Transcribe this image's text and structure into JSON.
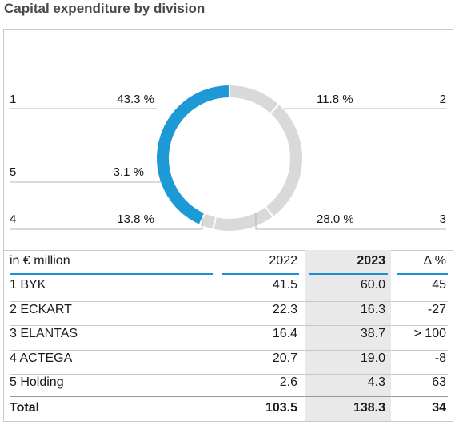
{
  "title": "Capital expenditure by division",
  "colors": {
    "highlight": "#1d9ad6",
    "muted": "#d9d9d9",
    "rule": "#1d8fd6"
  },
  "chart_data": {
    "type": "pie",
    "variant": "donut",
    "slices": [
      {
        "label": "1",
        "percent_text": "43.3 %",
        "value": 43.3,
        "highlighted": true
      },
      {
        "label": "2",
        "percent_text": "11.8 %",
        "value": 11.8,
        "highlighted": false
      },
      {
        "label": "3",
        "percent_text": "28.0 %",
        "value": 28.0,
        "highlighted": false
      },
      {
        "label": "4",
        "percent_text": "13.8 %",
        "value": 13.8,
        "highlighted": false
      },
      {
        "label": "5",
        "percent_text": "3.1 %",
        "value": 3.1,
        "highlighted": false
      }
    ]
  },
  "table": {
    "headers": [
      "in € million",
      "2022",
      "2023",
      "Δ %"
    ],
    "rows": [
      [
        "1 BYK",
        "41.5",
        "60.0",
        "45"
      ],
      [
        "2 ECKART",
        "22.3",
        "16.3",
        "-27"
      ],
      [
        "3 ELANTAS",
        "16.4",
        "38.7",
        "> 100"
      ],
      [
        "4 ACTEGA",
        "20.7",
        "19.0",
        "-8"
      ],
      [
        "5 Holding",
        "2.6",
        "4.3",
        "63"
      ]
    ],
    "total": [
      "Total",
      "103.5",
      "138.3",
      "34"
    ]
  }
}
